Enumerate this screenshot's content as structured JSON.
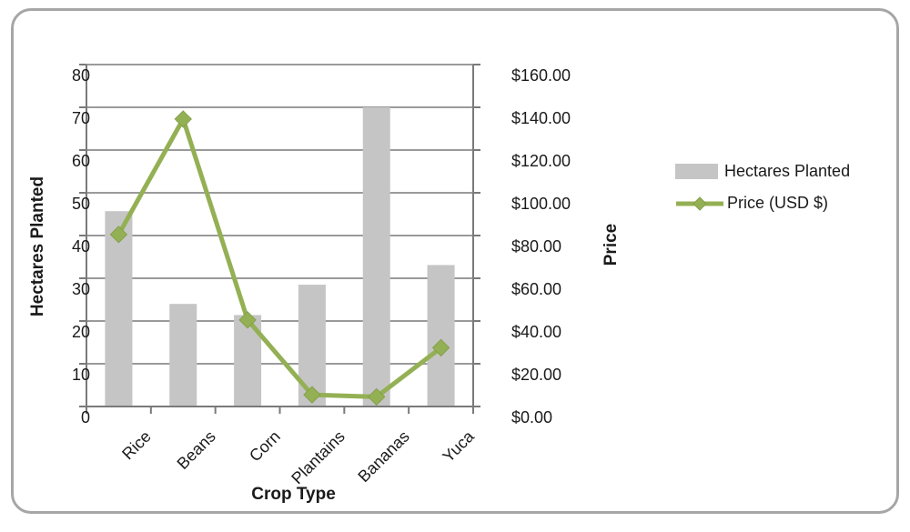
{
  "chart_data": {
    "type": "combo-bar-line",
    "title": "",
    "categories": [
      "Rice",
      "Beans",
      "Corn",
      "Plantains",
      "Bananas",
      "Yuca"
    ],
    "series": [
      {
        "name": "Hectares Planted",
        "type": "bar",
        "axis": "left",
        "color": "#C5C5C5",
        "values": [
          45.7,
          24,
          21.4,
          28.5,
          70,
          33.1
        ]
      },
      {
        "name": "Price (USD $)",
        "type": "line",
        "axis": "right",
        "color": "#94B054",
        "marker": "diamond",
        "values": [
          80.5,
          134.5,
          40.5,
          5.5,
          4.5,
          27.5
        ]
      }
    ],
    "x_axis": {
      "title": "Crop Type"
    },
    "left_axis": {
      "title": "Hectares Planted",
      "min": 0,
      "max": 80,
      "step": 10,
      "tick_labels": [
        "0",
        "10",
        "20",
        "30",
        "40",
        "50",
        "60",
        "70",
        "80"
      ]
    },
    "right_axis": {
      "title": "Price",
      "min": 0,
      "max": 160,
      "step": 20,
      "tick_labels": [
        "$0.00",
        "$20.00",
        "$40.00",
        "$60.00",
        "$80.00",
        "$100.00",
        "$120.00",
        "$140.00",
        "$160.00"
      ]
    },
    "legend": {
      "position": "right",
      "items": [
        "Hectares Planted",
        "Price (USD $)"
      ]
    },
    "grid": true
  },
  "colors": {
    "bar": "#C5C5C5",
    "line": "#94B054",
    "marker_edge": "#84A04A",
    "gridline": "#9A9A9A",
    "axis": "#7A7A7A",
    "text": "#1A1A1A",
    "frame_border": "#A6A6A6",
    "background": "#FFFFFF"
  }
}
